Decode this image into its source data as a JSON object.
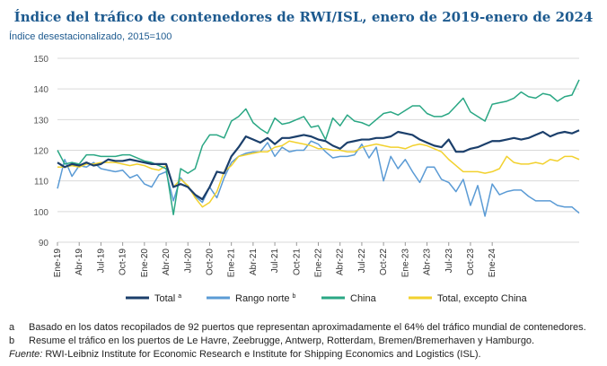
{
  "title": "Índice del tráfico de contenedores de RWI/ISL, enero de 2019-enero de 2024",
  "subtitle": "Índice desestacionalizado, 2015=100",
  "notes": [
    {
      "key": "a",
      "text": "Basado en los datos recopilados de 92 puertos que representan aproximadamente el 64% del tráfico mundial de contenedores."
    },
    {
      "key": "b",
      "text": "Resume el tráfico en los puertos de Le Havre, Zeebrugge, Antwerp, Rotterdam, Bremen/Bremerhaven y Hamburgo."
    }
  ],
  "source_label": "Fuente:",
  "source_text": "RWI-Leibniz Institute for Economic Research e Institute for Shipping Economics and Logistics (ISL).",
  "chart_data": {
    "type": "line",
    "title": "Índice del tráfico de contenedores de RWI/ISL, enero de 2019-enero de 2024",
    "ylabel": "",
    "xlabel": "",
    "ylim": [
      90,
      150
    ],
    "yticks": [
      90,
      100,
      110,
      120,
      130,
      140,
      150
    ],
    "grid": true,
    "legend_position": "bottom",
    "x_tick_labels": [
      "Ene-19",
      "Abr-19",
      "Jul-19",
      "Oct-19",
      "Ene-20",
      "Abr-20",
      "Jul-20",
      "Oct-20",
      "Ene-21",
      "Abr-21",
      "Jul-21",
      "Oct-21",
      "Ene-22",
      "Abr-22",
      "Jul-22",
      "Oct-22",
      "Ene-23",
      "Abr-23",
      "Jul-23",
      "Oct-23",
      "Ene-24"
    ],
    "series": [
      {
        "name": "Total",
        "legend_sup": "a",
        "color": "#1b3f6b",
        "values": [
          116,
          114.5,
          115.5,
          115,
          116,
          115,
          115.5,
          117,
          116.5,
          116.5,
          117,
          116.5,
          116,
          115.5,
          115.5,
          115.5,
          108,
          109,
          108,
          105.5,
          104,
          108,
          113,
          112.5,
          118,
          121,
          124.5,
          123.5,
          122.5,
          124,
          122,
          124,
          124,
          124.5,
          125,
          124.5,
          123.5,
          123,
          121.5,
          120.5,
          122.5,
          123,
          123.5,
          123.5,
          124,
          124,
          124.5,
          126,
          125.5,
          125,
          123.5,
          122.5,
          121.5,
          121,
          123.5,
          119.5,
          119.5,
          120.5,
          121,
          122,
          123,
          123,
          123.5,
          124,
          123.5,
          124,
          125,
          126,
          124.5,
          125.5,
          126,
          125.5,
          126.5
        ]
      },
      {
        "name": "Rango norte",
        "legend_sup": "b",
        "color": "#5b9bd5",
        "values": [
          107.5,
          117,
          111.5,
          115,
          114.5,
          116,
          114,
          113.5,
          113,
          113.5,
          111,
          112,
          109,
          108,
          112,
          113,
          103.5,
          111,
          108,
          105,
          103,
          108,
          104.5,
          111,
          116,
          118,
          119,
          119.5,
          119.5,
          122.5,
          118,
          121,
          119.5,
          120,
          120,
          123,
          122,
          119.5,
          117.5,
          118,
          118,
          118.5,
          122,
          117.5,
          121,
          110,
          118,
          114,
          117,
          113,
          109.5,
          114.5,
          114.5,
          110.5,
          109.5,
          106.5,
          110.5,
          102,
          108.5,
          98.5,
          109,
          105.5,
          106.5,
          107,
          107,
          105,
          103.5,
          103.5,
          103.5,
          102,
          101.5,
          101.5,
          99.5
        ]
      },
      {
        "name": "China",
        "legend_sup": "",
        "color": "#2aa784",
        "values": [
          120,
          115.5,
          116,
          115.5,
          118.5,
          118.5,
          118,
          118,
          118,
          118.5,
          118.5,
          117.5,
          116.5,
          116,
          115,
          114,
          99,
          114,
          112.5,
          114,
          121.5,
          125,
          125,
          124,
          129.5,
          131,
          133.5,
          129,
          127,
          125.5,
          130.5,
          128.5,
          129,
          130,
          131,
          127.5,
          128,
          123.5,
          130.5,
          128,
          131.5,
          129.5,
          129,
          128,
          130,
          132,
          132.5,
          131.5,
          133,
          134.5,
          134.5,
          132,
          131,
          131,
          132,
          134.5,
          137,
          132.5,
          131,
          129.5,
          135,
          135.5,
          136,
          137,
          139,
          137.5,
          137,
          138.5,
          138,
          136,
          137.5,
          138,
          143
        ]
      },
      {
        "name": "Total, excepto China",
        "legend_sup": "",
        "color": "#f2d12e",
        "values": [
          114.5,
          114.5,
          115,
          114.5,
          115.5,
          115.5,
          116,
          116,
          116,
          115.5,
          115,
          115.5,
          115,
          114,
          113.5,
          115,
          108,
          110.5,
          108.5,
          104.5,
          101.5,
          103,
          106.5,
          113,
          115,
          118,
          118.5,
          119,
          119.5,
          119.5,
          121,
          121.5,
          123,
          122.5,
          122,
          121.5,
          120.5,
          120.5,
          120,
          120,
          119.5,
          119.5,
          121,
          121.5,
          122,
          121.5,
          121,
          121,
          120.5,
          121.5,
          122,
          121.5,
          120.5,
          119.5,
          117,
          115,
          113,
          113,
          113,
          112.5,
          113,
          114,
          118,
          116,
          115.5,
          115.5,
          116,
          115.5,
          117,
          116.5,
          118,
          118,
          117
        ]
      }
    ]
  }
}
